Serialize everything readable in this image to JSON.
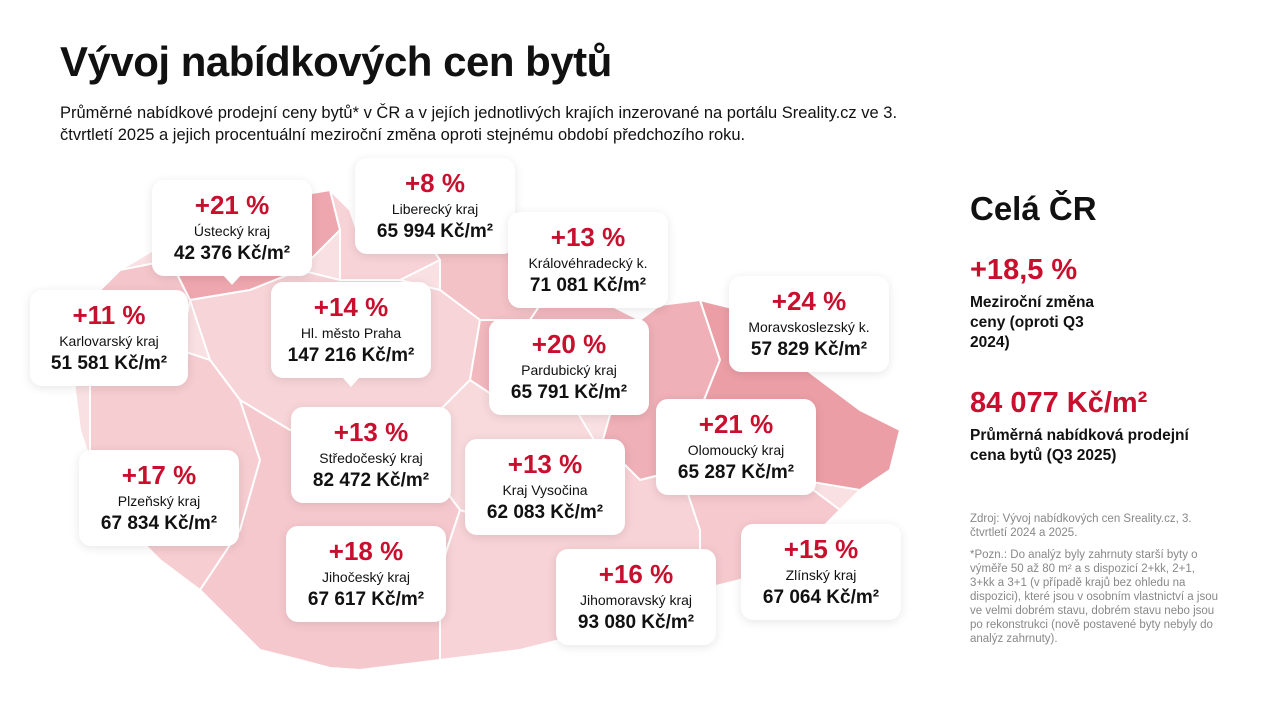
{
  "header": {
    "title": "Vývoj nabídkových cen bytů",
    "subtitle": "Průměrné nabídkové prodejní ceny bytů* v ČR a v jejích jednotlivých krajích inzerované na portálu Sreality.cz ve 3. čtvrtletí 2025 a jejich procentuální meziroční změna oproti stejnému období předchozího roku."
  },
  "colors": {
    "accent": "#c8102e",
    "map_light": "#f7d7da",
    "map_mid": "#f0b3b9",
    "map_dark": "#eb9ea6"
  },
  "regions": [
    {
      "id": "ustecky",
      "change": "+21 %",
      "name": "Ústecký kraj",
      "price": "42 376 Kč/m²"
    },
    {
      "id": "liberecky",
      "change": "+8 %",
      "name": "Liberecký kraj",
      "price": "65 994 Kč/m²"
    },
    {
      "id": "kralovehradecky",
      "change": "+13 %",
      "name": "Královéhradecký k.",
      "price": "71 081 Kč/m²"
    },
    {
      "id": "karlovarsky",
      "change": "+11 %",
      "name": "Karlovarský kraj",
      "price": "51 581 Kč/m²"
    },
    {
      "id": "praha",
      "change": "+14 %",
      "name": "Hl. město Praha",
      "price": "147 216 Kč/m²"
    },
    {
      "id": "pardubicky",
      "change": "+20 %",
      "name": "Pardubický kraj",
      "price": "65 791 Kč/m²"
    },
    {
      "id": "moravskoslezsky",
      "change": "+24 %",
      "name": "Moravskoslezský k.",
      "price": "57 829 Kč/m²"
    },
    {
      "id": "stredocesky",
      "change": "+13 %",
      "name": "Středočeský kraj",
      "price": "82 472 Kč/m²"
    },
    {
      "id": "olomoucky",
      "change": "+21 %",
      "name": "Olomoucký kraj",
      "price": "65 287 Kč/m²"
    },
    {
      "id": "plzensky",
      "change": "+17 %",
      "name": "Plzeňský kraj",
      "price": "67 834 Kč/m²"
    },
    {
      "id": "vysocina",
      "change": "+13 %",
      "name": "Kraj Vysočina",
      "price": "62 083 Kč/m²"
    },
    {
      "id": "jihocesky",
      "change": "+18 %",
      "name": "Jihočeský kraj",
      "price": "67 617 Kč/m²"
    },
    {
      "id": "zlinsky",
      "change": "+15 %",
      "name": "Zlínský kraj",
      "price": "67 064 Kč/m²"
    },
    {
      "id": "jihomoravsky",
      "change": "+16 %",
      "name": "Jihomoravský kraj",
      "price": "93 080 Kč/m²"
    }
  ],
  "summary": {
    "heading": "Celá ČR",
    "change": "+18,5 %",
    "change_label": "Meziroční změna ceny (oproti Q3 2024)",
    "price": "84 077 Kč/m²",
    "price_label": "Průměrná nabídková prodejní cena bytů (Q3 2025)"
  },
  "source": "Zdroj: Vývoj nabídkových cen Sreality.cz, 3. čtvrtletí 2024 a 2025.",
  "note": "*Pozn.: Do analýz byly zahrnuty starší byty o výměře 50 až 80 m² a s dispozicí 2+kk, 2+1, 3+kk a 3+1 (v případě krajů bez ohledu na dispozici), které jsou v osobním vlastnictví a jsou ve velmi dobrém stavu, dobrém stavu nebo jsou po rekonstrukci (nově postavené byty nebyly do analýz zahrnuty)."
}
